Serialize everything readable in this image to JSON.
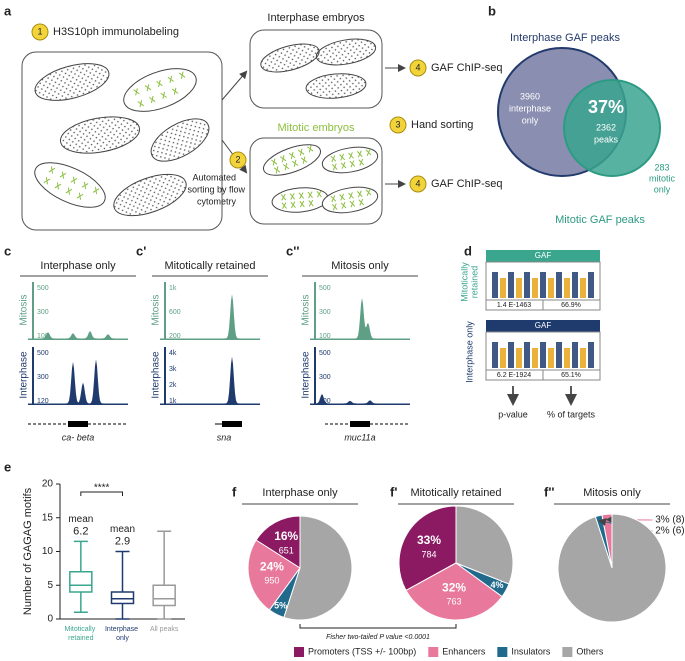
{
  "panel_a": {
    "label": "a",
    "step1_num": "1",
    "step1": "H3S10ph immunolabeling",
    "interphase_title": "Interphase embryos",
    "mitotic_title": "Mitotic embryos",
    "step2_num": "2",
    "step2_lines": [
      "Automated",
      "sorting by flow",
      "cytometry"
    ],
    "step3_num": "3",
    "step3": "Hand sorting",
    "step4_num": "4",
    "step4": "GAF ChIP-seq"
  },
  "panel_b": {
    "label": "b",
    "interphase_title": "Interphase GAF peaks",
    "mitotic_title": "Mitotic GAF peaks",
    "interphase_only_count": "3960",
    "interphase_only_lines": [
      "interphase",
      "only"
    ],
    "overlap_percent": "37%",
    "overlap_count": "2362",
    "overlap_unit": "peaks",
    "mitotic_only_count": "283",
    "mitotic_only_lines": [
      "mitotic",
      "only"
    ]
  },
  "panel_c": {
    "row_labels": [
      "Mitosis",
      "Interphase"
    ],
    "tracks": [
      {
        "label": "c",
        "title": "Interphase only",
        "mitosis_ticks": [
          "500",
          "300",
          "100"
        ],
        "interphase_ticks": [
          "500",
          "300",
          "120"
        ],
        "gene": "ca- beta"
      },
      {
        "label": "c'",
        "title": "Mitotically retained",
        "mitosis_ticks": [
          "1k",
          "600",
          "200"
        ],
        "interphase_ticks": [
          "4k",
          "3k",
          "2k",
          "1k"
        ],
        "gene": "sna"
      },
      {
        "label": "c''",
        "title": "Mitosis only",
        "mitosis_ticks": [
          "500",
          "300",
          "100"
        ],
        "interphase_ticks": [
          "500",
          "300",
          "100"
        ],
        "gene": "muc11a"
      }
    ]
  },
  "panel_d": {
    "label": "d",
    "motifs": [
      {
        "row_label_lines": [
          "Mitotically",
          "retained"
        ],
        "name": "GAF",
        "pvalue": "1.4 E-1463",
        "targets": "66.9%"
      },
      {
        "row_label_lines": [
          "Interphase only"
        ],
        "name": "GAF",
        "pvalue": "6.2 E-1924",
        "targets": "65.1%"
      }
    ],
    "legend": [
      "p-value",
      "% of targets"
    ]
  },
  "chart_data": [
    {
      "type": "box",
      "panel_label": "e",
      "ylabel": "Number of GAGAG motifs",
      "ylim": [
        0,
        20
      ],
      "yticks": [
        0,
        5,
        10,
        15,
        20
      ],
      "categories": [
        "Mitotically retained",
        "Interphase only",
        "All peaks"
      ],
      "colors": [
        "#3aa68e",
        "#1f3b6e",
        "#9a9a9a"
      ],
      "whislo": [
        1,
        0,
        0
      ],
      "q1": [
        4,
        2.3,
        2
      ],
      "median": [
        5,
        3,
        3
      ],
      "q3": [
        7,
        4,
        5
      ],
      "whishi": [
        11.5,
        10,
        13
      ],
      "mean_label": "mean",
      "means": [
        6.2,
        2.9,
        null
      ],
      "significance": "****"
    },
    {
      "type": "pie",
      "panel_label": "f",
      "title": "Interphase only",
      "categories": [
        "Promoters (TSS +/- 100bp)",
        "Enhancers",
        "Insulators",
        "Others"
      ],
      "colors": [
        "#8b1a62",
        "#e8799c",
        "#226a8c",
        "#a6a6a6"
      ],
      "values": [
        16,
        24,
        5,
        55
      ],
      "value_labels": [
        "16%",
        "24%",
        "5%",
        null
      ],
      "counts": [
        651,
        950,
        null,
        null
      ]
    },
    {
      "type": "pie",
      "panel_label": "f'",
      "title": "Mitotically retained",
      "categories": [
        "Promoters (TSS +/- 100bp)",
        "Enhancers",
        "Insulators",
        "Others"
      ],
      "colors": [
        "#8b1a62",
        "#e8799c",
        "#226a8c",
        "#a6a6a6"
      ],
      "values": [
        33,
        32,
        4,
        31
      ],
      "value_labels": [
        "33%",
        "32%",
        "4%",
        null
      ],
      "counts": [
        784,
        763,
        null,
        null
      ]
    },
    {
      "type": "pie",
      "panel_label": "f''",
      "title": "Mitosis only",
      "categories": [
        "Promoters (TSS +/- 100bp)",
        "Enhancers",
        "Insulators",
        "Others"
      ],
      "colors": [
        "#8b1a62",
        "#e8799c",
        "#226a8c",
        "#a6a6a6"
      ],
      "values": [
        0,
        3,
        2,
        95
      ],
      "value_labels": [
        null,
        "3% (8)",
        "2% (6)",
        null
      ]
    }
  ],
  "footnote": "Fisher two-tailed P value <0.0001"
}
